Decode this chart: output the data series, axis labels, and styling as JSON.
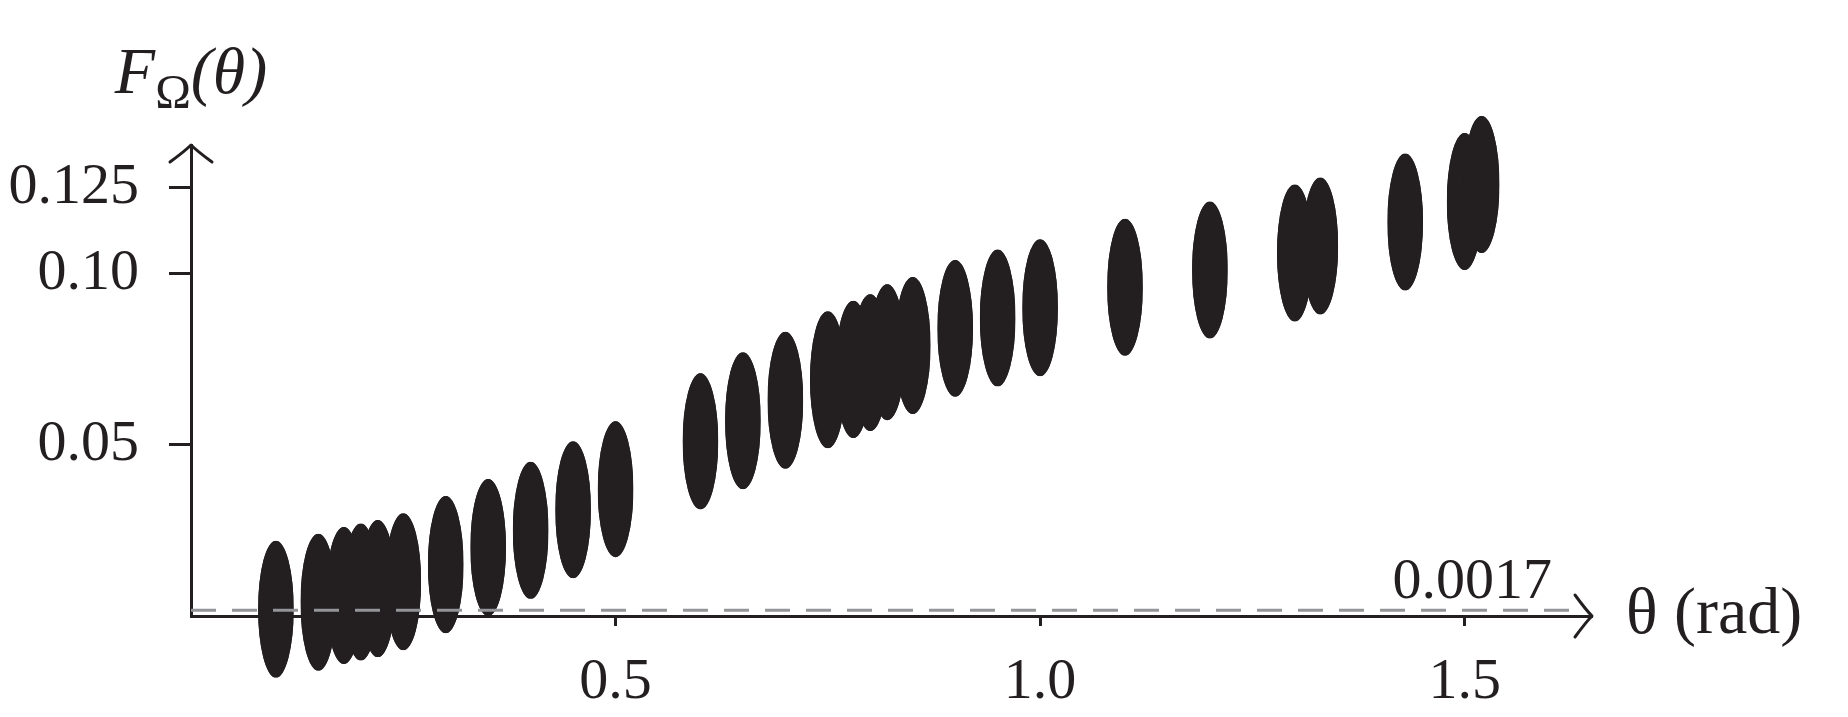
{
  "chart_data": {
    "type": "scatter",
    "xlabel": "θ (rad)",
    "ylabel": "F$_{Ω}$(θ)",
    "x": [
      0.1,
      0.15,
      0.18,
      0.2,
      0.22,
      0.25,
      0.3,
      0.35,
      0.4,
      0.45,
      0.5,
      0.6,
      0.65,
      0.7,
      0.75,
      0.78,
      0.8,
      0.82,
      0.85,
      0.9,
      0.95,
      1.0,
      1.1,
      1.2,
      1.3,
      1.33,
      1.43,
      1.5,
      1.52
    ],
    "series": [
      {
        "color": "#231f20",
        "values": [
          0.002,
          0.004,
          0.006,
          0.007,
          0.008,
          0.01,
          0.015,
          0.02,
          0.025,
          0.031,
          0.037,
          0.051,
          0.057,
          0.063,
          0.069,
          0.072,
          0.074,
          0.077,
          0.079,
          0.084,
          0.087,
          0.09,
          0.096,
          0.101,
          0.106,
          0.108,
          0.115,
          0.121,
          0.126
        ],
        "errors": [
          0.02,
          0.02,
          0.02,
          0.02,
          0.02,
          0.02,
          0.02,
          0.02,
          0.02,
          0.02,
          0.02,
          0.02,
          0.02,
          0.02,
          0.02,
          0.02,
          0.02,
          0.02,
          0.02,
          0.02,
          0.02,
          0.02,
          0.02,
          0.02,
          0.02,
          0.02,
          0.02,
          0.02,
          0.02
        ],
        "xerrors": [
          0.021,
          0.021,
          0.021,
          0.021,
          0.021,
          0.021,
          0.021,
          0.021,
          0.021,
          0.021,
          0.021,
          0.021,
          0.021,
          0.021,
          0.021,
          0.021,
          0.021,
          0.021,
          0.021,
          0.021,
          0.021,
          0.021,
          0.021,
          0.021,
          0.021,
          0.021,
          0.021,
          0.021,
          0.021
        ]
      }
    ],
    "xlim": [
      0,
      1.65
    ],
    "xticks": [
      0.5,
      {
        "value": 1,
        "label": "1.0"
      },
      1.5
    ],
    "ylim": [
      0,
      0.1375
    ],
    "yticks": [
      0.05,
      {
        "value": 0.1,
        "label": "0.10"
      },
      0.125
    ],
    "ref_lines": [
      {
        "axis": "y",
        "value": 0.0017,
        "label": "0.0017",
        "color": "#939598",
        "line_style": "dashed"
      }
    ]
  }
}
